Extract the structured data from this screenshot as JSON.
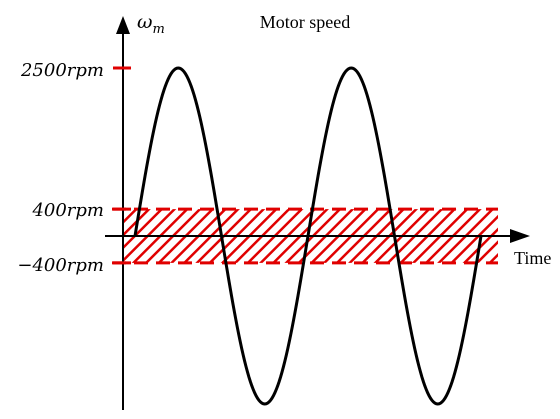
{
  "chart_data": {
    "type": "line",
    "title": "Motor speed",
    "xlabel": "Time",
    "ylabel": "ω",
    "ylabel_subscript": "m",
    "ytick_labels": {
      "top": "2500rpm",
      "upper": "400rpm",
      "lower": "−400rpm"
    },
    "yticks": [
      2500,
      400,
      -400
    ],
    "ylim": [
      -3000,
      3000
    ],
    "series": [
      {
        "shape": "sine",
        "amplitude": 2500,
        "cycles": 2,
        "x": [
          0,
          0.125,
          0.25,
          0.375,
          0.5,
          0.625,
          0.75,
          0.875,
          1.0
        ],
        "values": [
          0,
          2500,
          0,
          -2500,
          0,
          2500,
          0,
          -2500,
          0
        ]
      }
    ],
    "band": {
      "from": -400,
      "to": 400,
      "fill": "hatched",
      "color": "#e00000"
    },
    "curve_color": "#000000",
    "axis_color": "#000000"
  }
}
